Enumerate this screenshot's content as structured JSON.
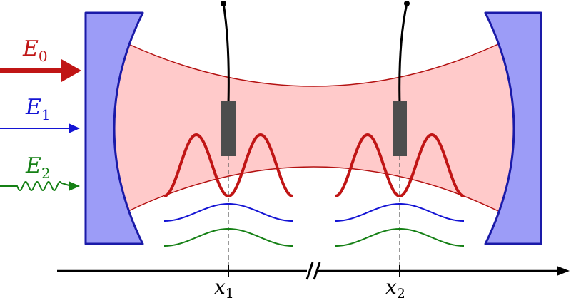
{
  "labels": {
    "e0": {
      "main": "E",
      "sub": "0"
    },
    "e1": {
      "main": "E",
      "sub": "1"
    },
    "e2": {
      "main": "E",
      "sub": "2"
    },
    "x1": {
      "main": "x",
      "sub": "1"
    },
    "x2": {
      "main": "x",
      "sub": "2"
    }
  },
  "colors": {
    "mirror_fill": "#9c9cf7",
    "mirror_stroke": "#1a1aa8",
    "beam_fill": "#ffcaca",
    "beam_stroke": "#b31111",
    "e0": "#c01515",
    "e1": "#1414d4",
    "e2": "#158015",
    "atom": "#4d4d4d",
    "wire": "#000000",
    "axis": "#000000",
    "dashed": "#555555"
  }
}
